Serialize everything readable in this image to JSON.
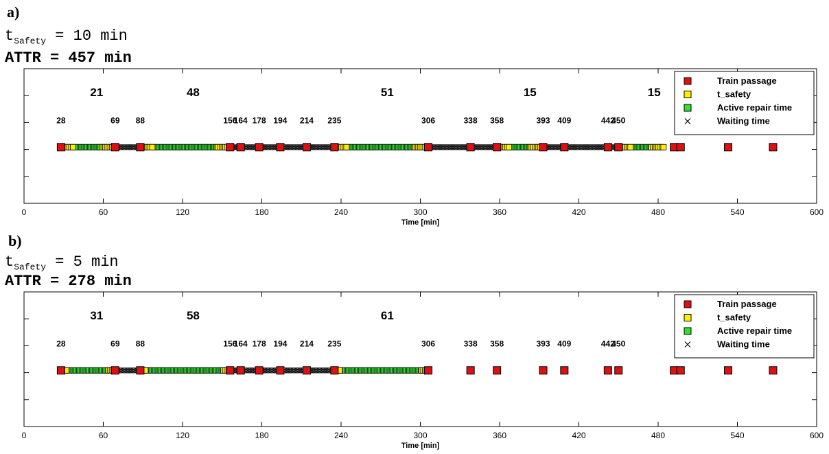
{
  "panels": [
    {
      "letter": "a)",
      "tsafety": {
        "symbol": "t",
        "subscript": "Safety",
        "rest": " = 10 min"
      },
      "attr": "ATTR = 457 min"
    },
    {
      "letter": "b)",
      "tsafety": {
        "symbol": "t",
        "subscript": "Safety",
        "rest": " = 5 min"
      },
      "attr": "ATTR = 278 min"
    }
  ],
  "colors": {
    "train_passage": "#dd1111",
    "t_safety": "#ffee00",
    "active_repair": "#33dd33",
    "waiting": "#000000"
  },
  "chart_data": [
    {
      "type": "timeline",
      "xlabel": "Time [min]",
      "xlim": [
        0,
        600
      ],
      "xticks": [
        0,
        60,
        120,
        180,
        240,
        300,
        360,
        420,
        480,
        540,
        600
      ],
      "legend": {
        "position": "top-right",
        "entries": [
          "Train passage",
          "t_safety",
          "Active repair time",
          "Waiting time"
        ]
      },
      "train_passages": [
        28,
        69,
        88,
        156,
        164,
        178,
        194,
        214,
        235,
        306,
        338,
        358,
        393,
        409,
        442,
        450,
        492,
        497,
        533,
        567
      ],
      "passage_labels": [
        28,
        69,
        88,
        156,
        164,
        178,
        194,
        214,
        235,
        306,
        338,
        358,
        393,
        409,
        442,
        450
      ],
      "passage_label_texts": [
        "28",
        "69",
        "88",
        "156",
        "164",
        "178",
        "194",
        "214",
        "235",
        "306",
        "338",
        "358",
        "393",
        "409",
        "442",
        "450"
      ],
      "t_safety": 10,
      "active_repair": [
        [
          38,
          59
        ],
        [
          98,
          146
        ],
        [
          245,
          296
        ],
        [
          368,
          383
        ],
        [
          460,
          475
        ]
      ],
      "t_safety_periods": [
        [
          28,
          38
        ],
        [
          59,
          69
        ],
        [
          88,
          98
        ],
        [
          146,
          156
        ],
        [
          235,
          245
        ],
        [
          296,
          306
        ],
        [
          358,
          368
        ],
        [
          383,
          393
        ],
        [
          450,
          460
        ],
        [
          475,
          485
        ]
      ],
      "waiting": [
        [
          69,
          88
        ],
        [
          156,
          235
        ],
        [
          306,
          358
        ],
        [
          393,
          450
        ]
      ],
      "repair_labels": [
        {
          "text": "21",
          "x": 55
        },
        {
          "text": "48",
          "x": 128
        },
        {
          "text": "51",
          "x": 275
        },
        {
          "text": "15",
          "x": 383
        },
        {
          "text": "15",
          "x": 477
        }
      ]
    },
    {
      "type": "timeline",
      "xlabel": "Time [min]",
      "xlim": [
        0,
        600
      ],
      "xticks": [
        0,
        60,
        120,
        180,
        240,
        300,
        360,
        420,
        480,
        540,
        600
      ],
      "legend": {
        "position": "top-right",
        "entries": [
          "Train passage",
          "t_safety",
          "Active repair time",
          "Waiting time"
        ]
      },
      "train_passages": [
        28,
        69,
        88,
        156,
        164,
        178,
        194,
        214,
        235,
        306,
        338,
        358,
        393,
        409,
        442,
        450,
        492,
        497,
        533,
        567
      ],
      "passage_labels": [
        28,
        69,
        88,
        156,
        164,
        178,
        194,
        214,
        235,
        306,
        338,
        358,
        393,
        409,
        442,
        450
      ],
      "passage_label_texts": [
        "28",
        "69",
        "88",
        "156",
        "164",
        "178",
        "194",
        "214",
        "235",
        "306",
        "338",
        "358",
        "393",
        "409",
        "442",
        "450"
      ],
      "t_safety": 5,
      "active_repair": [
        [
          33,
          64
        ],
        [
          93,
          151
        ],
        [
          240,
          301
        ]
      ],
      "t_safety_periods": [
        [
          28,
          33
        ],
        [
          64,
          69
        ],
        [
          88,
          93
        ],
        [
          151,
          156
        ],
        [
          235,
          240
        ],
        [
          301,
          306
        ]
      ],
      "waiting": [
        [
          69,
          88
        ],
        [
          156,
          235
        ]
      ],
      "repair_labels": [
        {
          "text": "31",
          "x": 55
        },
        {
          "text": "58",
          "x": 128
        },
        {
          "text": "61",
          "x": 275
        }
      ]
    }
  ]
}
